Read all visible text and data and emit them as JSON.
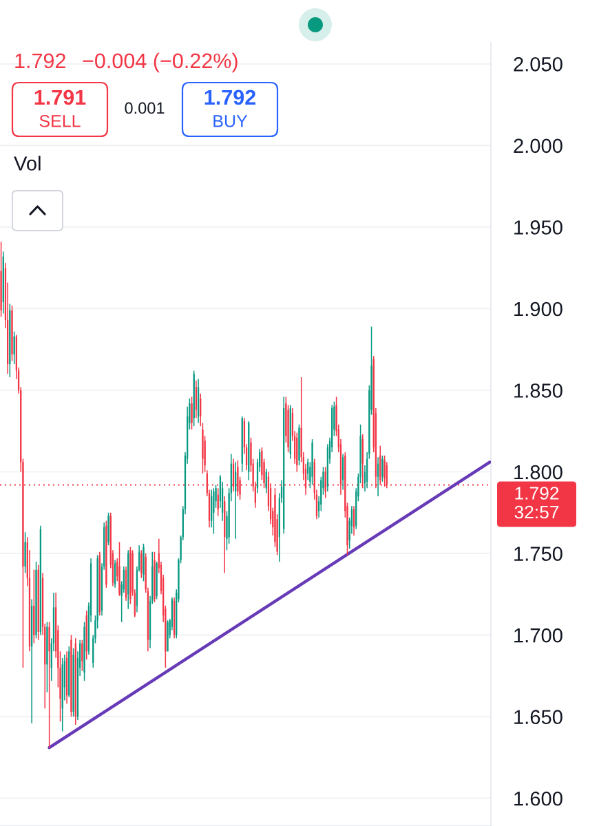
{
  "chart_data": {
    "type": "candlestick",
    "categories": [
      null,
      null,
      null,
      null,
      null,
      null,
      null,
      null,
      null,
      null,
      null,
      null,
      null,
      null,
      null,
      null,
      null,
      null,
      null,
      null,
      null,
      null,
      null,
      null,
      null,
      null,
      null,
      null,
      null,
      null,
      null,
      null,
      null,
      null,
      null,
      null,
      null,
      null,
      null,
      null,
      null,
      null,
      null,
      null,
      null,
      null,
      null,
      null,
      null,
      null,
      null,
      null,
      null,
      null,
      null,
      null,
      null,
      null,
      null,
      null,
      null,
      null,
      null,
      null,
      null,
      null,
      null,
      null,
      null,
      null,
      null,
      null,
      null,
      null,
      null,
      null,
      null,
      null,
      null,
      null,
      null,
      null,
      null,
      null,
      null,
      null,
      null,
      null,
      null,
      null,
      null,
      null,
      null,
      null,
      null,
      null,
      null,
      null,
      null,
      null,
      null,
      null,
      null,
      null,
      null,
      null,
      null,
      null,
      null,
      null,
      null,
      null,
      null,
      null,
      null,
      null,
      null,
      null,
      null,
      null,
      null,
      null,
      null,
      null,
      null,
      null,
      null,
      null,
      null,
      null,
      null,
      null,
      null,
      null,
      null,
      null,
      null,
      null,
      null,
      null,
      null,
      null,
      null,
      null,
      null,
      null,
      null,
      null,
      null,
      null,
      null,
      null,
      null,
      null,
      null,
      null,
      null,
      null,
      null,
      null,
      null,
      null,
      null,
      null,
      null,
      null,
      null,
      null,
      null,
      null,
      null,
      null,
      null,
      null,
      null,
      null,
      null,
      null,
      null,
      null,
      null,
      null,
      null,
      null,
      null,
      null,
      null,
      null,
      null,
      null,
      null,
      null,
      null,
      null,
      null,
      null,
      null,
      null,
      null,
      null,
      null,
      null,
      null,
      null,
      null,
      null,
      null,
      null,
      null,
      null,
      null,
      null,
      null,
      null,
      null,
      null,
      null,
      null,
      null,
      null,
      null,
      null,
      null,
      null
    ],
    "ohlc": [
      [
        1.923,
        1.941,
        1.895,
        1.899
      ],
      [
        1.904,
        1.935,
        1.897,
        1.932
      ],
      [
        1.925,
        1.928,
        1.888,
        1.893
      ],
      [
        1.893,
        1.916,
        1.86,
        1.866
      ],
      [
        1.866,
        1.903,
        1.858,
        1.899
      ],
      [
        1.899,
        1.902,
        1.868,
        1.872
      ],
      [
        1.872,
        1.886,
        1.866,
        1.883
      ],
      [
        1.883,
        1.884,
        1.857,
        1.862
      ],
      [
        1.862,
        1.864,
        1.848,
        1.85
      ],
      [
        1.85,
        1.852,
        1.8,
        1.806
      ],
      [
        1.806,
        1.808,
        1.68,
        1.742
      ],
      [
        1.742,
        1.763,
        1.738,
        1.757
      ],
      [
        1.757,
        1.76,
        1.73,
        1.735
      ],
      [
        1.735,
        1.752,
        1.69,
        1.693
      ],
      [
        1.693,
        1.722,
        1.646,
        1.718
      ],
      [
        1.718,
        1.74,
        1.695,
        1.7
      ],
      [
        1.7,
        1.745,
        1.698,
        1.74
      ],
      [
        1.74,
        1.743,
        1.697,
        1.702
      ],
      [
        1.702,
        1.767,
        1.7,
        1.765
      ],
      [
        1.735,
        1.738,
        1.7,
        1.705
      ],
      [
        1.705,
        1.707,
        1.655,
        1.682
      ],
      [
        1.682,
        1.708,
        1.665,
        1.705
      ],
      [
        1.705,
        1.708,
        1.631,
        1.69
      ],
      [
        1.68,
        1.698,
        1.672,
        1.695
      ],
      [
        1.695,
        1.726,
        1.69,
        1.717
      ],
      [
        1.717,
        1.726,
        1.686,
        1.69
      ],
      [
        1.703,
        1.706,
        1.668,
        1.68
      ],
      [
        1.68,
        1.69,
        1.647,
        1.661
      ],
      [
        1.655,
        1.686,
        1.641,
        1.682
      ],
      [
        1.668,
        1.688,
        1.66,
        1.684
      ],
      [
        1.686,
        1.69,
        1.658,
        1.663
      ],
      [
        1.663,
        1.693,
        1.662,
        1.69
      ],
      [
        1.697,
        1.7,
        1.65,
        1.653
      ],
      [
        1.653,
        1.692,
        1.65,
        1.688
      ],
      [
        1.695,
        1.698,
        1.645,
        1.65
      ],
      [
        1.65,
        1.69,
        1.648,
        1.686
      ],
      [
        1.68,
        1.697,
        1.675,
        1.695
      ],
      [
        1.695,
        1.697,
        1.678,
        1.684
      ],
      [
        1.677,
        1.708,
        1.672,
        1.705
      ],
      [
        1.712,
        1.715,
        1.685,
        1.69
      ],
      [
        1.69,
        1.72,
        1.688,
        1.718
      ],
      [
        1.712,
        1.747,
        1.708,
        1.744
      ],
      [
        1.683,
        1.7,
        1.68,
        1.698
      ],
      [
        1.698,
        1.712,
        1.695,
        1.709
      ],
      [
        1.709,
        1.749,
        1.704,
        1.747
      ],
      [
        1.749,
        1.751,
        1.712,
        1.714
      ],
      [
        1.715,
        1.744,
        1.712,
        1.742
      ],
      [
        1.742,
        1.769,
        1.74,
        1.766
      ],
      [
        1.767,
        1.77,
        1.729,
        1.731
      ],
      [
        1.757,
        1.775,
        1.755,
        1.773
      ],
      [
        1.773,
        1.775,
        1.741,
        1.743
      ],
      [
        1.75,
        1.752,
        1.73,
        1.732
      ],
      [
        1.731,
        1.746,
        1.729,
        1.744
      ],
      [
        1.745,
        1.747,
        1.733,
        1.736
      ],
      [
        1.742,
        1.757,
        1.724,
        1.725
      ],
      [
        1.724,
        1.733,
        1.708,
        1.731
      ],
      [
        1.728,
        1.742,
        1.726,
        1.74
      ],
      [
        1.74,
        1.742,
        1.721,
        1.723
      ],
      [
        1.725,
        1.752,
        1.716,
        1.75
      ],
      [
        1.752,
        1.754,
        1.719,
        1.722
      ],
      [
        1.75,
        1.752,
        1.724,
        1.726
      ],
      [
        1.726,
        1.728,
        1.711,
        1.712
      ],
      [
        1.718,
        1.742,
        1.714,
        1.74
      ],
      [
        1.74,
        1.755,
        1.739,
        1.751
      ],
      [
        1.75,
        1.752,
        1.735,
        1.738
      ],
      [
        1.737,
        1.756,
        1.733,
        1.754
      ],
      [
        1.748,
        1.75,
        1.726,
        1.728
      ],
      [
        1.727,
        1.729,
        1.69,
        1.697
      ],
      [
        1.697,
        1.724,
        1.692,
        1.721
      ],
      [
        1.721,
        1.751,
        1.719,
        1.742
      ],
      [
        1.746,
        1.751,
        1.72,
        1.722
      ],
      [
        1.724,
        1.745,
        1.722,
        1.744
      ],
      [
        1.75,
        1.759,
        1.738,
        1.741
      ],
      [
        1.743,
        1.745,
        1.725,
        1.727
      ],
      [
        1.735,
        1.737,
        1.708,
        1.712
      ],
      [
        1.716,
        1.718,
        1.68,
        1.69
      ],
      [
        1.69,
        1.709,
        1.69,
        1.708
      ],
      [
        1.7,
        1.71,
        1.698,
        1.709
      ],
      [
        1.705,
        1.723,
        1.703,
        1.722
      ],
      [
        1.721,
        1.723,
        1.698,
        1.7
      ],
      [
        1.7,
        1.728,
        1.698,
        1.726
      ],
      [
        1.722,
        1.747,
        1.72,
        1.746
      ],
      [
        1.746,
        1.761,
        1.744,
        1.76
      ],
      [
        1.76,
        1.779,
        1.758,
        1.777
      ],
      [
        1.777,
        1.812,
        1.774,
        1.81
      ],
      [
        1.808,
        1.84,
        1.805,
        1.834
      ],
      [
        1.83,
        1.845,
        1.826,
        1.842
      ],
      [
        1.842,
        1.846,
        1.826,
        1.83
      ],
      [
        1.833,
        1.862,
        1.828,
        1.86
      ],
      [
        1.852,
        1.856,
        1.833,
        1.838
      ],
      [
        1.834,
        1.857,
        1.83,
        1.852
      ],
      [
        1.845,
        1.848,
        1.828,
        1.834
      ],
      [
        1.826,
        1.83,
        1.799,
        1.808
      ],
      [
        1.819,
        1.822,
        1.8,
        1.804
      ],
      [
        1.799,
        1.801,
        1.785,
        1.787
      ],
      [
        1.787,
        1.789,
        1.766,
        1.77
      ],
      [
        1.77,
        1.789,
        1.766,
        1.785
      ],
      [
        1.775,
        1.79,
        1.762,
        1.788
      ],
      [
        1.782,
        1.792,
        1.778,
        1.79
      ],
      [
        1.786,
        1.79,
        1.773,
        1.777
      ],
      [
        1.782,
        1.798,
        1.778,
        1.797
      ],
      [
        1.775,
        1.794,
        1.77,
        1.79
      ],
      [
        1.782,
        1.785,
        1.738,
        1.76
      ],
      [
        1.759,
        1.776,
        1.752,
        1.773
      ],
      [
        1.76,
        1.79,
        1.756,
        1.787
      ],
      [
        1.787,
        1.811,
        1.782,
        1.805
      ],
      [
        1.805,
        1.808,
        1.788,
        1.791
      ],
      [
        1.788,
        1.806,
        1.759,
        1.8
      ],
      [
        1.803,
        1.807,
        1.785,
        1.788
      ],
      [
        1.795,
        1.797,
        1.783,
        1.786
      ],
      [
        1.805,
        1.834,
        1.8,
        1.833
      ],
      [
        1.831,
        1.833,
        1.811,
        1.815
      ],
      [
        1.815,
        1.817,
        1.801,
        1.804
      ],
      [
        1.8,
        1.831,
        1.795,
        1.83
      ],
      [
        1.818,
        1.821,
        1.8,
        1.804
      ],
      [
        1.805,
        1.808,
        1.788,
        1.791
      ],
      [
        1.791,
        1.794,
        1.778,
        1.781
      ],
      [
        1.79,
        1.808,
        1.787,
        1.806
      ],
      [
        1.803,
        1.814,
        1.8,
        1.812
      ],
      [
        1.813,
        1.815,
        1.795,
        1.798
      ],
      [
        1.806,
        1.808,
        1.79,
        1.793
      ],
      [
        1.79,
        1.802,
        1.787,
        1.8
      ],
      [
        1.797,
        1.8,
        1.776,
        1.779
      ],
      [
        1.79,
        1.793,
        1.768,
        1.771
      ],
      [
        1.776,
        1.778,
        1.761,
        1.766
      ],
      [
        1.786,
        1.79,
        1.754,
        1.757
      ],
      [
        1.771,
        1.774,
        1.749,
        1.751
      ],
      [
        1.76,
        1.787,
        1.745,
        1.784
      ],
      [
        1.784,
        1.795,
        1.781,
        1.791
      ],
      [
        1.765,
        1.846,
        1.762,
        1.839
      ],
      [
        1.842,
        1.846,
        1.818,
        1.822
      ],
      [
        1.838,
        1.841,
        1.812,
        1.815
      ],
      [
        1.811,
        1.841,
        1.808,
        1.839
      ],
      [
        1.836,
        1.839,
        1.819,
        1.822
      ],
      [
        1.822,
        1.825,
        1.805,
        1.808
      ],
      [
        1.821,
        1.824,
        1.8,
        1.804
      ],
      [
        1.807,
        1.829,
        1.804,
        1.827
      ],
      [
        1.827,
        1.858,
        1.806,
        1.809
      ],
      [
        1.809,
        1.812,
        1.795,
        1.799
      ],
      [
        1.802,
        1.805,
        1.786,
        1.79
      ],
      [
        1.799,
        1.808,
        1.795,
        1.806
      ],
      [
        1.794,
        1.806,
        1.79,
        1.803
      ],
      [
        1.797,
        1.82,
        1.792,
        1.818
      ],
      [
        1.806,
        1.808,
        1.783,
        1.787
      ],
      [
        1.786,
        1.789,
        1.771,
        1.773
      ],
      [
        1.776,
        1.785,
        1.772,
        1.782
      ],
      [
        1.78,
        1.797,
        1.776,
        1.795
      ],
      [
        1.79,
        1.803,
        1.786,
        1.8
      ],
      [
        1.8,
        1.803,
        1.784,
        1.788
      ],
      [
        1.791,
        1.817,
        1.788,
        1.815
      ],
      [
        1.808,
        1.821,
        1.805,
        1.819
      ],
      [
        1.815,
        1.841,
        1.812,
        1.839
      ],
      [
        1.826,
        1.843,
        1.822,
        1.84
      ],
      [
        1.841,
        1.846,
        1.822,
        1.825
      ],
      [
        1.826,
        1.829,
        1.812,
        1.815
      ],
      [
        1.817,
        1.82,
        1.786,
        1.792
      ],
      [
        1.795,
        1.811,
        1.789,
        1.809
      ],
      [
        1.81,
        1.812,
        1.772,
        1.776
      ],
      [
        1.779,
        1.781,
        1.749,
        1.755
      ],
      [
        1.758,
        1.772,
        1.753,
        1.77
      ],
      [
        1.767,
        1.779,
        1.762,
        1.777
      ],
      [
        1.777,
        1.779,
        1.761,
        1.766
      ],
      [
        1.767,
        1.79,
        1.765,
        1.788
      ],
      [
        1.785,
        1.799,
        1.782,
        1.797
      ],
      [
        1.797,
        1.829,
        1.793,
        1.822
      ],
      [
        1.82,
        1.823,
        1.79,
        1.805
      ],
      [
        1.793,
        1.804,
        1.788,
        1.8
      ],
      [
        1.794,
        1.812,
        1.79,
        1.808
      ],
      [
        1.811,
        1.853,
        1.808,
        1.85
      ],
      [
        1.838,
        1.889,
        1.835,
        1.865
      ],
      [
        1.869,
        1.871,
        1.812,
        1.815
      ],
      [
        1.836,
        1.839,
        1.79,
        1.797
      ],
      [
        1.797,
        1.809,
        1.785,
        1.805
      ],
      [
        1.81,
        1.816,
        1.792,
        1.795
      ],
      [
        1.797,
        1.81,
        1.794,
        1.808
      ],
      [
        1.807,
        1.81,
        1.791,
        1.796
      ],
      [
        1.804,
        1.806,
        1.79,
        1.792
      ],
      null,
      null,
      null,
      null,
      null,
      null,
      null,
      null,
      null,
      null,
      null,
      null,
      null,
      null,
      null,
      null,
      null,
      null,
      null,
      null,
      null,
      null,
      null,
      null,
      null,
      null,
      null,
      null,
      null,
      null,
      null,
      null,
      null,
      null,
      null,
      null,
      null,
      null,
      null,
      null,
      null,
      null,
      null,
      null,
      null,
      null,
      null
    ],
    "colors": [
      "#f23645",
      "#089981",
      "#f23645",
      "#f23645",
      "#089981",
      "#f23645",
      "#089981",
      "#f23645",
      "#f23645",
      "#f23645",
      "#f23645",
      "#089981",
      "#f23645",
      "#f23645",
      "#089981",
      "#f23645",
      "#089981",
      "#f23645",
      "#089981",
      "#f23645",
      "#f23645",
      "#089981",
      "#f23645",
      "#089981",
      "#089981",
      "#f23645",
      "#f23645",
      "#f23645",
      "#089981",
      "#089981",
      "#f23645",
      "#089981",
      "#f23645",
      "#089981",
      "#f23645",
      "#089981",
      "#089981",
      "#f23645",
      "#089981",
      "#f23645",
      "#089981",
      "#089981",
      "#089981",
      "#089981",
      "#089981",
      "#f23645",
      "#089981",
      "#089981",
      "#f23645",
      "#089981",
      "#f23645",
      "#f23645",
      "#089981",
      "#f23645",
      "#f23645",
      "#089981",
      "#089981",
      "#f23645",
      "#089981",
      "#f23645",
      "#f23645",
      "#f23645",
      "#089981",
      "#089981",
      "#f23645",
      "#089981",
      "#f23645",
      "#f23645",
      "#089981",
      "#089981",
      "#f23645",
      "#089981",
      "#f23645",
      "#f23645",
      "#f23645",
      "#f23645",
      "#089981",
      "#089981",
      "#089981",
      "#f23645",
      "#089981",
      "#089981",
      "#089981",
      "#089981",
      "#089981",
      "#089981",
      "#089981",
      "#f23645",
      "#089981",
      "#f23645",
      "#089981",
      "#f23645",
      "#f23645",
      "#f23645",
      "#f23645",
      "#f23645",
      "#089981",
      "#089981",
      "#089981",
      "#f23645",
      "#089981",
      "#089981",
      "#f23645",
      "#089981",
      "#089981",
      "#089981",
      "#f23645",
      "#089981",
      "#f23645",
      "#f23645",
      "#089981",
      "#f23645",
      "#f23645",
      "#089981",
      "#f23645",
      "#f23645",
      "#f23645",
      "#089981",
      "#089981",
      "#f23645",
      "#f23645",
      "#089981",
      "#f23645",
      "#f23645",
      "#f23645",
      "#f23645",
      "#f23645",
      "#089981",
      "#089981",
      "#089981",
      "#f23645",
      "#f23645",
      "#089981",
      "#f23645",
      "#f23645",
      "#f23645",
      "#089981",
      "#f23645",
      "#f23645",
      "#f23645",
      "#089981",
      "#089981",
      "#089981",
      "#f23645",
      "#f23645",
      "#089981",
      "#089981",
      "#089981",
      "#f23645",
      "#089981",
      "#089981",
      "#089981",
      "#089981",
      "#f23645",
      "#f23645",
      "#f23645",
      "#089981",
      "#f23645",
      "#f23645",
      "#089981",
      "#089981",
      "#f23645",
      "#089981",
      "#089981",
      "#089981",
      "#f23645",
      "#089981",
      "#089981",
      "#089981",
      "#089981",
      "#f23645",
      "#f23645",
      "#089981",
      "#f23645",
      "#089981",
      "#f23645",
      "#f23645",
      null,
      null,
      null,
      null,
      null,
      null,
      null,
      null,
      null,
      null,
      null,
      null,
      null,
      null,
      null,
      null,
      null,
      null,
      null,
      null,
      null,
      null,
      null,
      null,
      null,
      null,
      null,
      null,
      null,
      null,
      null,
      null,
      null,
      null,
      null,
      null,
      null,
      null,
      null,
      null,
      null,
      null,
      null,
      null,
      null,
      null,
      null
    ],
    "series": [
      {
        "type": "line",
        "color": "#673ab7",
        "values": [
          null,
          null,
          null,
          null,
          null,
          null,
          null,
          null,
          null,
          null,
          null,
          null,
          null,
          null,
          null,
          null,
          null,
          null,
          null,
          null,
          null,
          null,
          1.631,
          null,
          null,
          null,
          null,
          null,
          null,
          null,
          null,
          null,
          null,
          null,
          null,
          null,
          null,
          null,
          null,
          null,
          null,
          null,
          null,
          null,
          null,
          null,
          null,
          null,
          null,
          null,
          null,
          null,
          null,
          null,
          null,
          null,
          null,
          null,
          null,
          null,
          null,
          null,
          null,
          null,
          null,
          null,
          null,
          null,
          null,
          null,
          null,
          null,
          null,
          null,
          null,
          null,
          null,
          null,
          null,
          null,
          null,
          null,
          null,
          null,
          null,
          null,
          null,
          null,
          null,
          null,
          null,
          null,
          null,
          null,
          null,
          null,
          null,
          null,
          null,
          null,
          null,
          null,
          null,
          null,
          null,
          null,
          null,
          null,
          null,
          null,
          null,
          null,
          null,
          null,
          null,
          null,
          null,
          null,
          null,
          null,
          null,
          null,
          null,
          null,
          null,
          null,
          null,
          null,
          null,
          null,
          null,
          null,
          null,
          null,
          null,
          null,
          null,
          null,
          null,
          null,
          null,
          null,
          null,
          null,
          null,
          null,
          null,
          null,
          null,
          null,
          null,
          null,
          null,
          null,
          null,
          null,
          null,
          null,
          null,
          null,
          null,
          null,
          null,
          null,
          null,
          null,
          null,
          null,
          null,
          null,
          null,
          null,
          null,
          null,
          null,
          null,
          null,
          null,
          null,
          null,
          null,
          null,
          null,
          null,
          null,
          null,
          null,
          null,
          null,
          null,
          null,
          null,
          null,
          null,
          null,
          null,
          null,
          null,
          null,
          null,
          null,
          null,
          null,
          null,
          null,
          null,
          null,
          null,
          null,
          null,
          null,
          null,
          null,
          null,
          null,
          null,
          null,
          null,
          null,
          null,
          null,
          null,
          null,
          1.806
        ]
      }
    ],
    "ylim": [
      1.583,
      2.063
    ],
    "yticks": [
      {
        "value": 1.6,
        "label": "1.600"
      },
      {
        "value": 1.65,
        "label": "1.650"
      },
      {
        "value": 1.7,
        "label": "1.700"
      },
      {
        "value": 1.75,
        "label": "1.750"
      },
      {
        "value": 1.8,
        "label": "1.800"
      },
      {
        "value": 1.85,
        "label": "1.850"
      },
      {
        "value": 1.9,
        "label": "1.900"
      },
      {
        "value": 1.95,
        "label": "1.950"
      },
      {
        "value": 2.0,
        "label": "2.000"
      },
      {
        "value": 2.05,
        "label": "2.050"
      }
    ],
    "tick_labels": "y",
    "grid": "y",
    "ref_lines": [
      {
        "axis": "y",
        "value": 1.792,
        "label": "1.792\n32:57",
        "color": "#f23645",
        "line_style": "dotted"
      }
    ],
    "annotations": [
      "1.792",
      "−0.004 (−0.22%)",
      "1.791",
      "SELL",
      "0.001",
      "1.792",
      "BUY",
      "Vol"
    ]
  }
}
